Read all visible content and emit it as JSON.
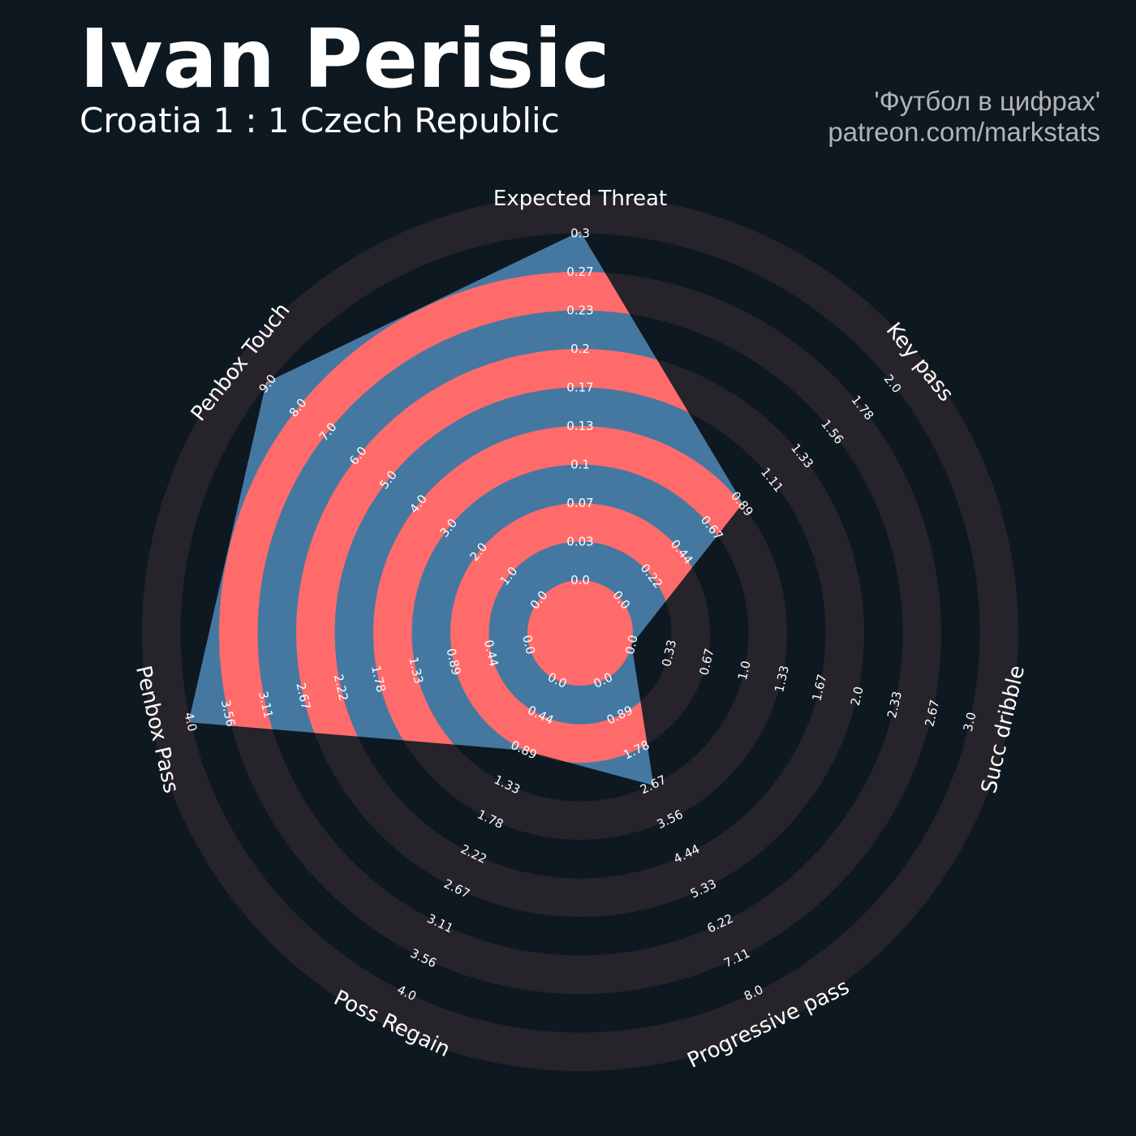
{
  "header": {
    "player": "Ivan Perisic",
    "match": "Croatia 1 : 1 Czech Republic",
    "credit_line1": "'Футбол в цифрах'",
    "credit_line2": "patreon.com/markstats"
  },
  "colors": {
    "background": "#0e1821",
    "ring_band": "#27232a",
    "polygon": "#4478a1",
    "polygon_ring": "#ff6b6b",
    "text": "#ffffff"
  },
  "chart_data": {
    "type": "radar",
    "params": [
      "Expected Threat",
      "Key pass",
      "Succ dribble",
      "Progressive pass",
      "Poss Regain",
      "Penbox Pass",
      "Penbox Touch"
    ],
    "values": [
      0.3,
      0.89,
      0.0,
      2.67,
      0.89,
      4.0,
      9.0
    ],
    "ranges": [
      [
        0.0,
        0.3
      ],
      [
        0.0,
        2.0
      ],
      [
        0.0,
        3.0
      ],
      [
        0.0,
        8.0
      ],
      [
        0.0,
        4.0
      ],
      [
        0.0,
        4.0
      ],
      [
        0.0,
        9.0
      ]
    ],
    "tick_labels": [
      [
        "0.0",
        "0.03",
        "0.07",
        "0.1",
        "0.13",
        "0.17",
        "0.2",
        "0.23",
        "0.27",
        "0.3"
      ],
      [
        "0.0",
        "0.22",
        "0.44",
        "0.67",
        "0.89",
        "1.11",
        "1.33",
        "1.56",
        "1.78",
        "2.0"
      ],
      [
        "0.0",
        "0.33",
        "0.67",
        "1.0",
        "1.33",
        "1.67",
        "2.0",
        "2.33",
        "2.67",
        "3.0"
      ],
      [
        "0.0",
        "0.89",
        "1.78",
        "2.67",
        "3.56",
        "4.44",
        "5.33",
        "6.22",
        "7.11",
        "8.0"
      ],
      [
        "0.0",
        "0.44",
        "0.89",
        "1.33",
        "1.78",
        "2.22",
        "2.67",
        "3.11",
        "3.56",
        "4.0"
      ],
      [
        "0.0",
        "0.44",
        "0.89",
        "1.33",
        "1.78",
        "2.22",
        "2.67",
        "3.11",
        "3.56",
        "4.0"
      ],
      [
        "0.0",
        "1.0",
        "2.0",
        "3.0",
        "4.0",
        "5.0",
        "6.0",
        "7.0",
        "8.0",
        "9.0"
      ]
    ]
  }
}
